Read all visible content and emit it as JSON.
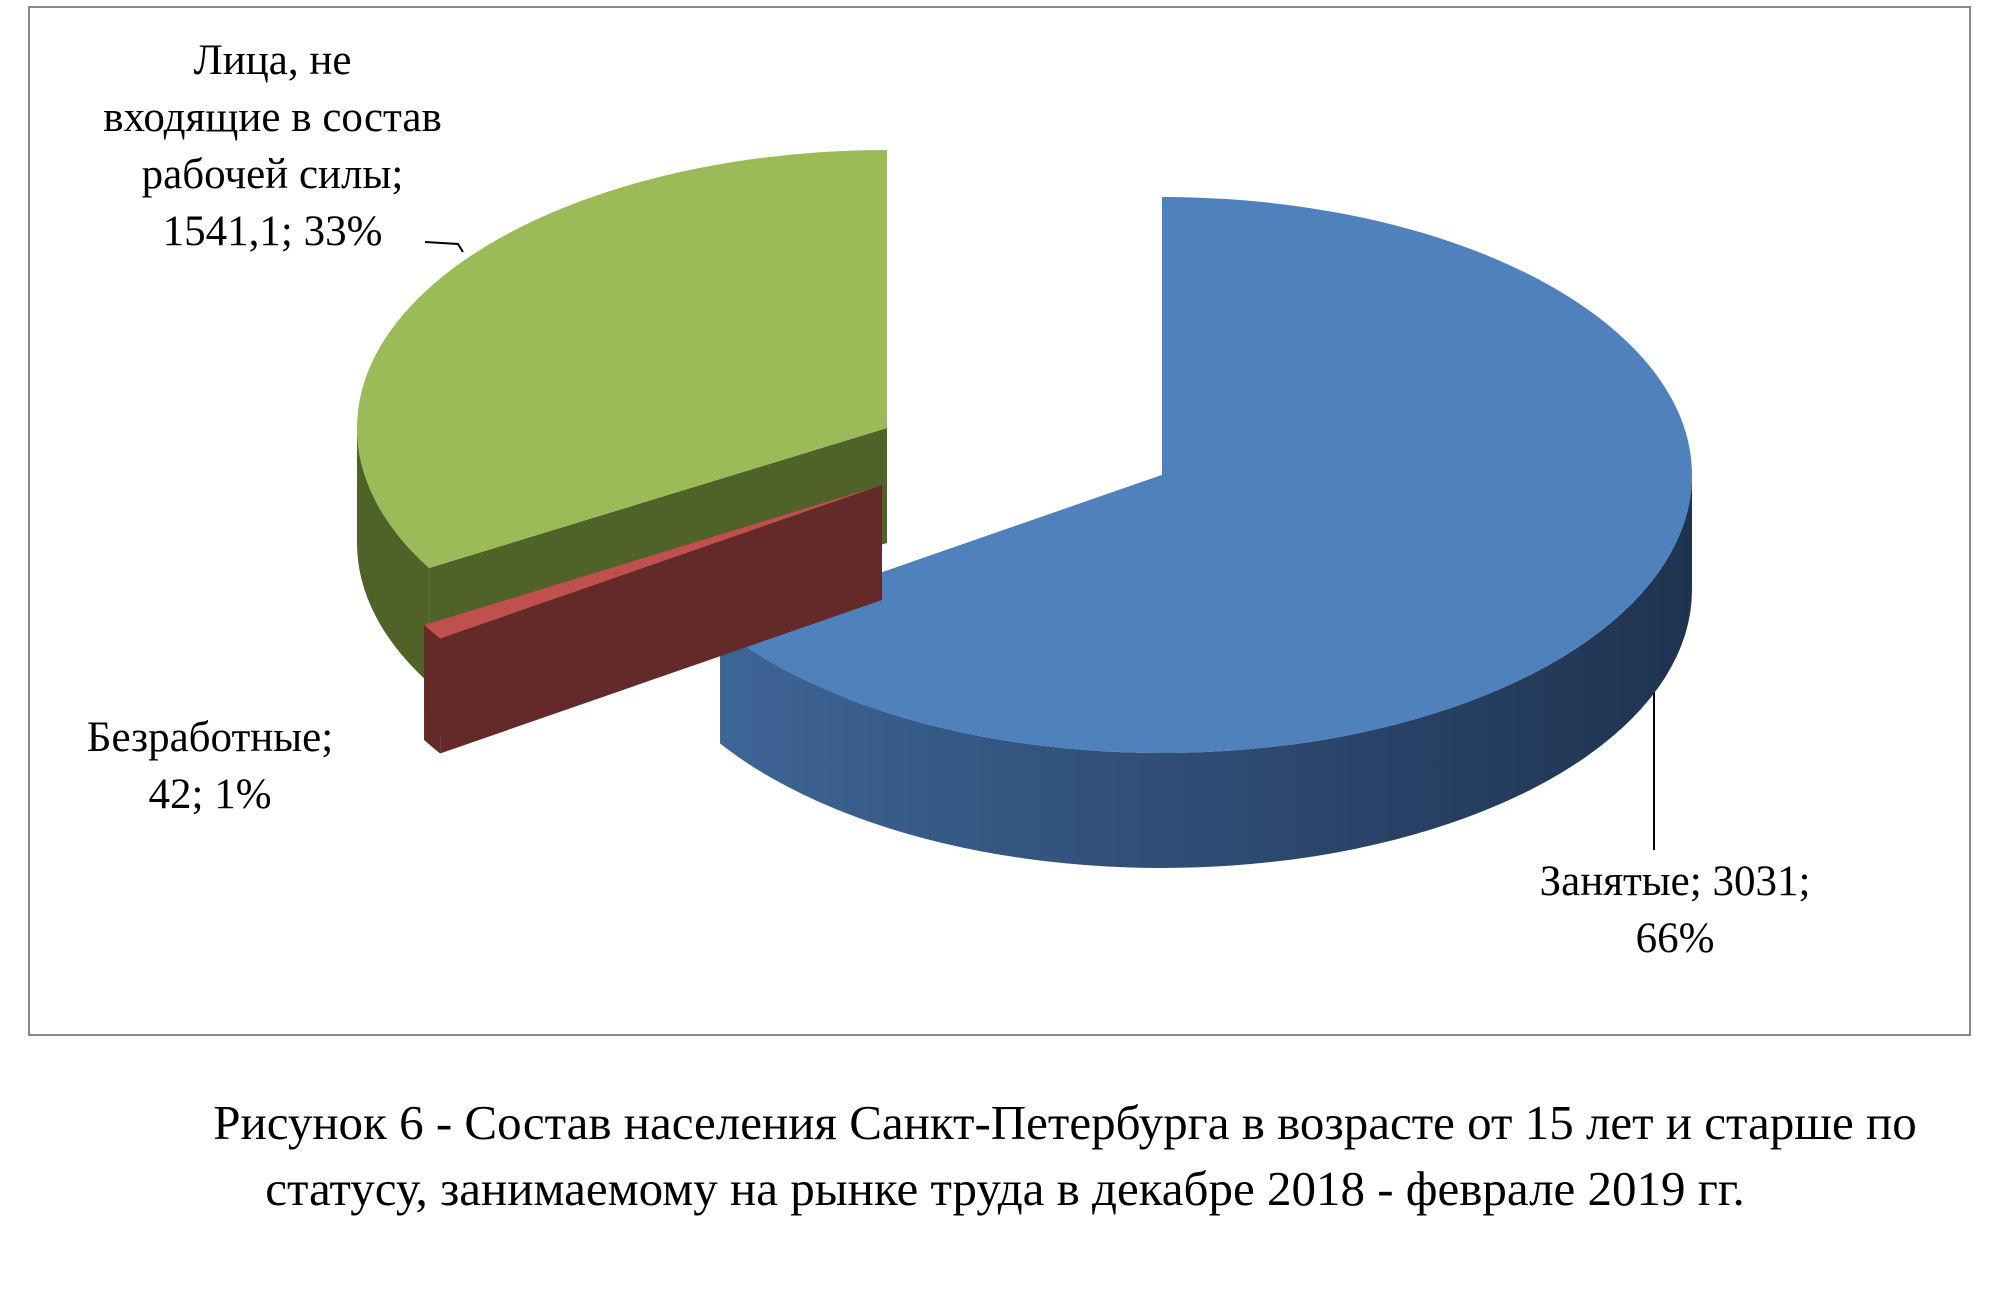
{
  "chart_data": {
    "type": "pie3d",
    "categories": [
      "Занятые",
      "Безработные",
      "Лица, не входящие в состав рабочей силы"
    ],
    "values": [
      3031,
      42,
      1541.1
    ],
    "value_labels": [
      "3031",
      "42",
      "1541,1"
    ],
    "percents": [
      66,
      1,
      33
    ],
    "percent_labels": [
      "66%",
      "1%",
      "33%"
    ],
    "label_separator": "; ",
    "colors": [
      "#4f81bd",
      "#c0504d",
      "#9bbb59"
    ],
    "side_colors": [
      "#2c4d75",
      "#632a29",
      "#4f6228"
    ],
    "caption": "Рисунок 6 - Состав населения Санкт-Петербурга в возрасте от 15 лет и старше по статусу, занимаемому на рынке труда в декабре 2018 - феврале 2019 гг."
  }
}
